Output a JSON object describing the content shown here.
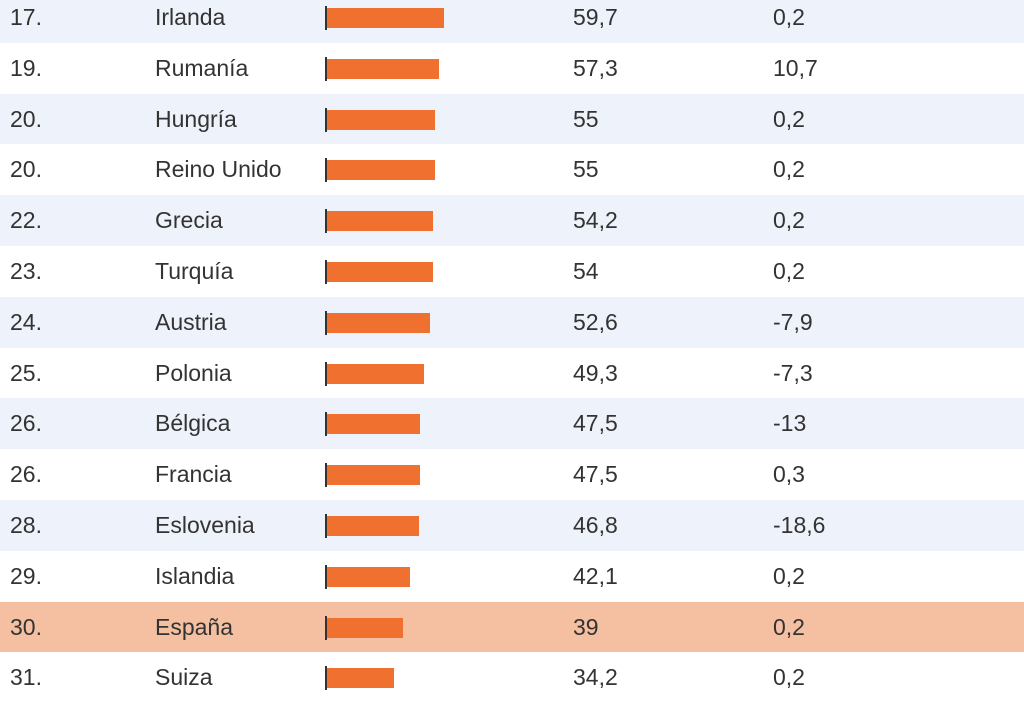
{
  "colors": {
    "bar": "#f07030",
    "row_alt": "#eef2fa",
    "row_plain": "#ffffff",
    "row_highlight": "#f4c0a1",
    "text": "#333333"
  },
  "chart_data": {
    "type": "bar",
    "orientation": "horizontal",
    "categories": [
      "Irlanda",
      "Rumanía",
      "Hungría",
      "Reino Unido",
      "Grecia",
      "Turquía",
      "Austria",
      "Polonia",
      "Bélgica",
      "Francia",
      "Eslovenia",
      "Islandia",
      "España",
      "Suiza"
    ],
    "values": [
      59.7,
      57.3,
      55,
      55,
      54.2,
      54,
      52.6,
      49.3,
      47.5,
      47.5,
      46.8,
      42.1,
      39,
      34.2
    ],
    "xlim": [
      0,
      100
    ],
    "highlighted_category": "España",
    "rows": [
      {
        "rank": "17.",
        "country": "Irlanda",
        "value": 59.7,
        "value_label": "59,7",
        "change": "0,2",
        "highlight": false
      },
      {
        "rank": "19.",
        "country": "Rumanía",
        "value": 57.3,
        "value_label": "57,3",
        "change": "10,7",
        "highlight": false
      },
      {
        "rank": "20.",
        "country": "Hungría",
        "value": 55,
        "value_label": "55",
        "change": "0,2",
        "highlight": false
      },
      {
        "rank": "20.",
        "country": "Reino Unido",
        "value": 55,
        "value_label": "55",
        "change": "0,2",
        "highlight": false
      },
      {
        "rank": "22.",
        "country": "Grecia",
        "value": 54.2,
        "value_label": "54,2",
        "change": "0,2",
        "highlight": false
      },
      {
        "rank": "23.",
        "country": "Turquía",
        "value": 54,
        "value_label": "54",
        "change": "0,2",
        "highlight": false
      },
      {
        "rank": "24.",
        "country": "Austria",
        "value": 52.6,
        "value_label": "52,6",
        "change": "-7,9",
        "highlight": false
      },
      {
        "rank": "25.",
        "country": "Polonia",
        "value": 49.3,
        "value_label": "49,3",
        "change": "-7,3",
        "highlight": false
      },
      {
        "rank": "26.",
        "country": "Bélgica",
        "value": 47.5,
        "value_label": "47,5",
        "change": "-13",
        "highlight": false
      },
      {
        "rank": "26.",
        "country": "Francia",
        "value": 47.5,
        "value_label": "47,5",
        "change": "0,3",
        "highlight": false
      },
      {
        "rank": "28.",
        "country": "Eslovenia",
        "value": 46.8,
        "value_label": "46,8",
        "change": "-18,6",
        "highlight": false
      },
      {
        "rank": "29.",
        "country": "Islandia",
        "value": 42.1,
        "value_label": "42,1",
        "change": "0,2",
        "highlight": false
      },
      {
        "rank": "30.",
        "country": "España",
        "value": 39,
        "value_label": "39",
        "change": "0,2",
        "highlight": true
      },
      {
        "rank": "31.",
        "country": "Suiza",
        "value": 34.2,
        "value_label": "34,2",
        "change": "0,2",
        "highlight": false
      }
    ]
  }
}
